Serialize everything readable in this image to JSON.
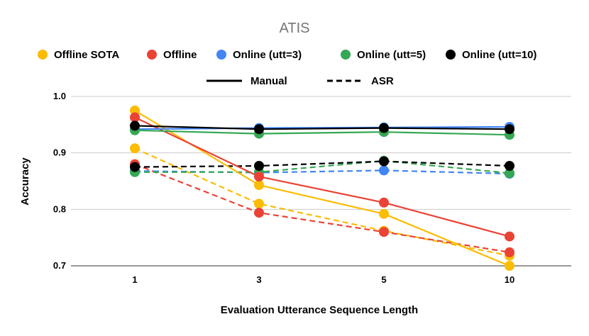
{
  "chart_data": {
    "type": "line",
    "title": "ATIS",
    "xlabel": "Evaluation Utterance Sequence Length",
    "ylabel": "Accuracy",
    "categories": [
      "1",
      "3",
      "5",
      "10"
    ],
    "yticks": [
      "0.7",
      "0.8",
      "0.9",
      "1.0"
    ],
    "ylim": [
      0.7,
      1.0
    ],
    "grid": true,
    "legend_position": "top",
    "style_legend": [
      {
        "name": "Manual",
        "style": "solid"
      },
      {
        "name": "ASR",
        "style": "dashed"
      }
    ],
    "series": [
      {
        "name": "Offline SOTA",
        "color": "#fbbc04",
        "manual": [
          0.975,
          0.843,
          0.792,
          0.7
        ],
        "asr": [
          0.908,
          0.81,
          0.762,
          0.718
        ]
      },
      {
        "name": "Offline",
        "color": "#ea4335",
        "manual": [
          0.963,
          0.858,
          0.812,
          0.752
        ],
        "asr": [
          0.88,
          0.794,
          0.76,
          0.724
        ]
      },
      {
        "name": "Online (utt=3)",
        "color": "#4285f4",
        "manual": [
          0.942,
          0.944,
          0.945,
          0.946
        ],
        "asr": [
          0.868,
          0.865,
          0.869,
          0.863
        ]
      },
      {
        "name": "Online (utt=5)",
        "color": "#34a853",
        "manual": [
          0.94,
          0.934,
          0.937,
          0.932
        ],
        "asr": [
          0.866,
          0.866,
          0.886,
          0.864
        ]
      },
      {
        "name": "Online (utt=10)",
        "color": "#000000",
        "manual": [
          0.948,
          0.942,
          0.944,
          0.942
        ],
        "asr": [
          0.875,
          0.877,
          0.885,
          0.877
        ]
      }
    ]
  }
}
